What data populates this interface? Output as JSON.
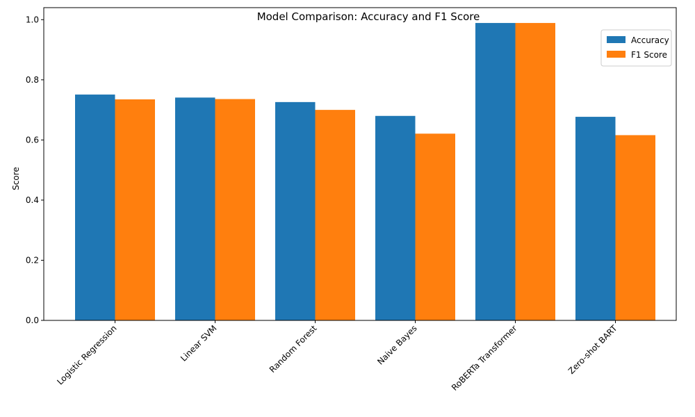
{
  "chart_data": {
    "type": "bar",
    "title": "Model Comparison: Accuracy and F1 Score",
    "xlabel": "",
    "ylabel": "Score",
    "categories": [
      "Logistic Regression",
      "Linear SVM",
      "Random Forest",
      "Naive Bayes",
      "RoBERTa Transformer",
      "Zero-shot BART"
    ],
    "series": [
      {
        "name": "Accuracy",
        "color": "#1f77b4",
        "values": [
          0.751,
          0.741,
          0.726,
          0.68,
          0.989,
          0.677
        ]
      },
      {
        "name": "F1 Score",
        "color": "#ff7f0e",
        "values": [
          0.735,
          0.736,
          0.7,
          0.621,
          0.989,
          0.616
        ]
      }
    ],
    "ylim": [
      0,
      1.04
    ],
    "yticks": [
      "0.0",
      "0.2",
      "0.4",
      "0.6",
      "0.8",
      "1.0"
    ],
    "grid": false,
    "legend_position": "top-right"
  }
}
